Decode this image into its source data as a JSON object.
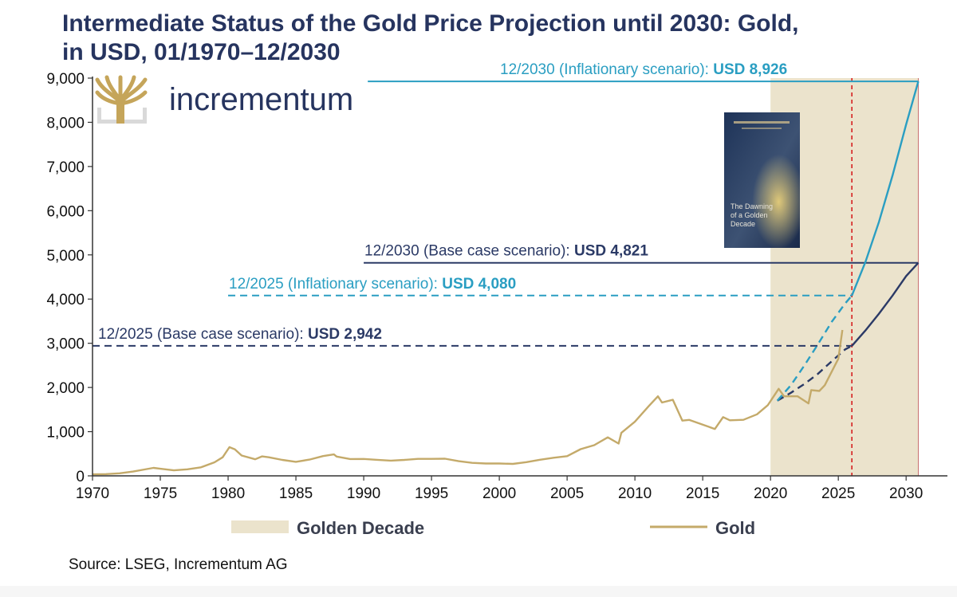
{
  "chart_data": {
    "type": "line",
    "title_lines": [
      "Intermediate Status of the Gold Price Projection until 2030: Gold,",
      "in USD, 01/1970–12/2030"
    ],
    "xlim": [
      1970,
      2031.4
    ],
    "ylim": [
      0,
      9000
    ],
    "x_ticks": [
      1970,
      1975,
      1980,
      1985,
      1990,
      1995,
      2000,
      2005,
      2010,
      2015,
      2020,
      2025,
      2030
    ],
    "y_ticks": [
      0,
      1000,
      2000,
      3000,
      4000,
      5000,
      6000,
      7000,
      8000,
      9000
    ],
    "y_tick_labels": [
      "0",
      "1,000",
      "2,000",
      "3,000",
      "4,000",
      "5,000",
      "6,000",
      "7,000",
      "8,000",
      "9,000"
    ],
    "golden_decade": {
      "start": 2020,
      "end": 2030.9,
      "color": "#ebe3cc"
    },
    "today_line": {
      "x": 2026,
      "color": "#d62020"
    },
    "gold_series": {
      "name": "Gold",
      "color": "#c4aa6a",
      "x": [
        1970,
        1971,
        1972,
        1973,
        1974,
        1974.5,
        1975,
        1976,
        1977,
        1978,
        1979,
        1979.6,
        1980.1,
        1980.5,
        1981,
        1982,
        1982.5,
        1983,
        1984,
        1985,
        1986,
        1987,
        1987.8,
        1988,
        1989,
        1990,
        1991,
        1992,
        1993,
        1994,
        1995,
        1996,
        1997,
        1998,
        1999,
        2000,
        2001,
        2002,
        2003,
        2004,
        2005,
        2006,
        2007,
        2008,
        2008.8,
        2009,
        2010,
        2011,
        2011.7,
        2012,
        2012.8,
        2013.5,
        2014,
        2015,
        2015.9,
        2016.5,
        2017,
        2018,
        2019,
        2019.8,
        2020.6,
        2021,
        2021.5,
        2022,
        2022.8,
        2023,
        2023.6,
        2024,
        2024.5,
        2025,
        2025.3
      ],
      "y": [
        35,
        40,
        58,
        97,
        154,
        180,
        160,
        125,
        148,
        193,
        307,
        420,
        650,
        600,
        460,
        375,
        440,
        420,
        360,
        317,
        368,
        447,
        485,
        437,
        381,
        383,
        362,
        344,
        360,
        384,
        384,
        388,
        331,
        294,
        279,
        279,
        271,
        310,
        364,
        410,
        445,
        604,
        695,
        872,
        730,
        972,
        1225,
        1571,
        1800,
        1660,
        1720,
        1250,
        1266,
        1160,
        1060,
        1330,
        1257,
        1268,
        1393,
        1600,
        1970,
        1800,
        1800,
        1800,
        1640,
        1940,
        1920,
        2050,
        2350,
        2650,
        3300
      ]
    },
    "scenarios": [
      {
        "name": "Base case",
        "color": "#2b3a66",
        "x": [
          2020.5,
          2021.5,
          2022.5,
          2023.5,
          2024.5,
          2025.5,
          2026,
          2027,
          2028,
          2029,
          2030,
          2030.9
        ],
        "y": [
          1700,
          1880,
          2080,
          2310,
          2590,
          2860,
          2942,
          3290,
          3670,
          4080,
          4520,
          4821
        ],
        "dashed_until": 2026
      },
      {
        "name": "Inflationary",
        "color": "#2a9ec2",
        "x": [
          2020.5,
          2021.5,
          2022.5,
          2023.5,
          2024.5,
          2025.5,
          2026,
          2027,
          2028,
          2029,
          2030,
          2030.9
        ],
        "y": [
          1700,
          2050,
          2500,
          2980,
          3480,
          3900,
          4080,
          4840,
          5750,
          6800,
          7950,
          8926
        ],
        "dashed_until": 2026
      }
    ],
    "annotations": [
      {
        "id": "inf2030",
        "prefix": "12/2030 (Inflationary scenario): ",
        "value": "USD 8,926",
        "y": 8926,
        "line_start_x": 1990.3,
        "line_end_x": 2030.9,
        "style": "solid",
        "color": "#2a9ec2"
      },
      {
        "id": "base2030",
        "prefix": "12/2030 (Base case scenario): ",
        "value": "USD 4,821",
        "y": 4821,
        "line_start_x": 1990,
        "line_end_x": 2030.9,
        "style": "solid",
        "color": "#2b3a66"
      },
      {
        "id": "inf2025",
        "prefix": "12/2025 (Inflationary scenario): ",
        "value": "USD 4,080",
        "y": 4080,
        "line_start_x": 1980,
        "line_end_x": 2026,
        "style": "dashed",
        "color": "#2a9ec2"
      },
      {
        "id": "base2025",
        "prefix": "12/2025 (Base case scenario): ",
        "value": "USD 2,942",
        "y": 2942,
        "line_start_x": 1970,
        "line_end_x": 2026,
        "style": "dashed",
        "color": "#2b3a66"
      }
    ],
    "legend": [
      {
        "label": "Golden Decade",
        "kind": "band",
        "color": "#ebe3cc"
      },
      {
        "label": "Gold",
        "kind": "line",
        "color": "#c4aa6a"
      }
    ],
    "brand": "incrementum",
    "book_cover_lines": [
      "The Dawning",
      "of a Golden",
      "Decade"
    ]
  },
  "source": "Source: LSEG, Incrementum AG"
}
